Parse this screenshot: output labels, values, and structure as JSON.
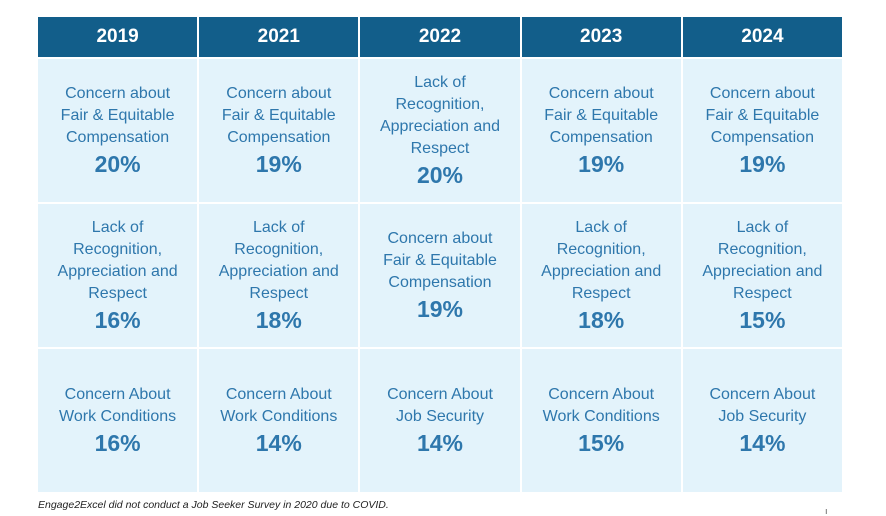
{
  "headers": [
    "2019",
    "2021",
    "2022",
    "2023",
    "2024"
  ],
  "rows": [
    [
      {
        "label": "Concern about\nFair & Equitable\nCompensation",
        "pct": "20%"
      },
      {
        "label": "Concern about\nFair & Equitable\nCompensation",
        "pct": "19%"
      },
      {
        "label": "Lack of\nRecognition,\nAppreciation and\nRespect",
        "pct": "20%"
      },
      {
        "label": "Concern about\nFair & Equitable\nCompensation",
        "pct": "19%"
      },
      {
        "label": "Concern about\nFair & Equitable\nCompensation",
        "pct": "19%"
      }
    ],
    [
      {
        "label": "Lack of\nRecognition,\nAppreciation and\nRespect",
        "pct": "16%"
      },
      {
        "label": "Lack of\nRecognition,\nAppreciation and\nRespect",
        "pct": "18%"
      },
      {
        "label": "Concern about\nFair & Equitable\nCompensation",
        "pct": "19%"
      },
      {
        "label": "Lack of\nRecognition,\nAppreciation and\nRespect",
        "pct": "18%"
      },
      {
        "label": "Lack of\nRecognition,\nAppreciation and\nRespect",
        "pct": "15%"
      }
    ],
    [
      {
        "label": "Concern About\nWork Conditions",
        "pct": "16%"
      },
      {
        "label": "Concern About\nWork Conditions",
        "pct": "14%"
      },
      {
        "label": "Concern About\nJob Security",
        "pct": "14%"
      },
      {
        "label": "Concern About\nWork Conditions",
        "pct": "15%"
      },
      {
        "label": "Concern About\nJob Security",
        "pct": "14%"
      }
    ]
  ],
  "footnote": "Engage2Excel did not conduct a Job Seeker Survey in 2020 due to COVID.",
  "colors": {
    "header_bg": "#125e8a",
    "cell_bg": "#e3f3fb",
    "text": "#2e77ac"
  }
}
